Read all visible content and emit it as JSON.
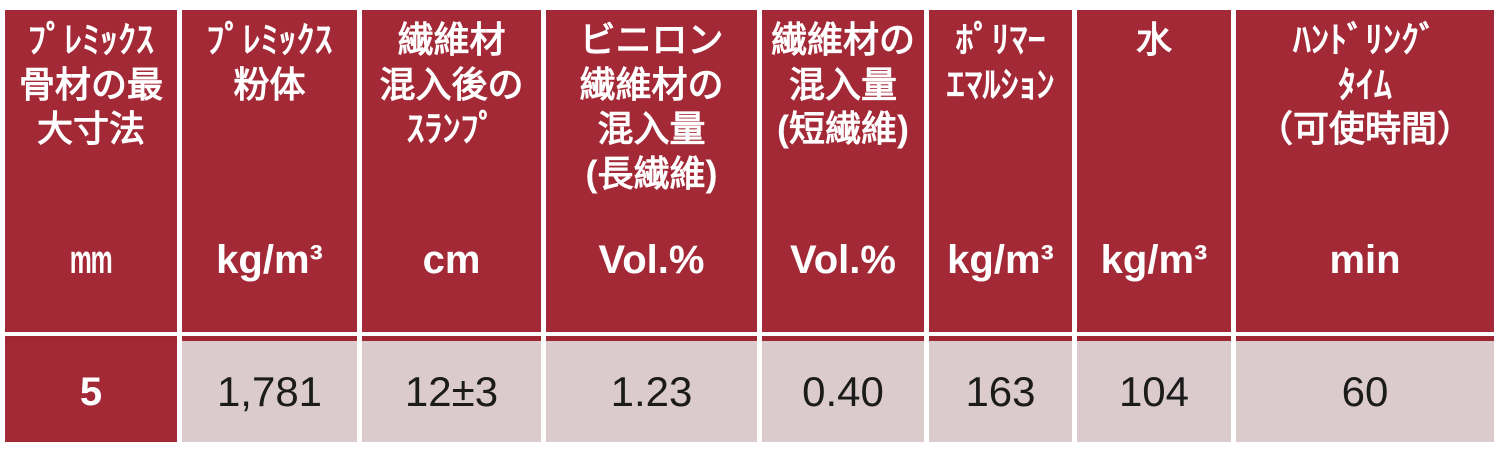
{
  "theme": {
    "css_vars": {
      "--accent-red": "#A42937",
      "--border-red": "#9E2733",
      "--row-pink": "#DCCBCD",
      "--header-text": "#FFFFFF",
      "--data-text": "#1B1B1B",
      "--page-bg": "#FFFFFF"
    }
  },
  "table": {
    "description": "Premixed fiber-reinforced mortar specification table",
    "columns": [
      {
        "label": "ﾌﾟﾚﾐｯｸｽ\n骨材の最\n大寸法",
        "unit": "mm",
        "value": "5"
      },
      {
        "label": "ﾌﾟﾚﾐｯｸｽ\n粉体",
        "unit": "kg/m³",
        "value": "1,781"
      },
      {
        "label": "繊維材\n混入後の\nｽﾗﾝﾌﾟ",
        "unit": "cm",
        "value": "12±3"
      },
      {
        "label": "ビニロン\n繊維材の\n混入量\n(長繊維)",
        "unit": "Vol.%",
        "value": "1.23"
      },
      {
        "label": "繊維材の\n混入量\n(短繊維)",
        "unit": "Vol.%",
        "value": "0.40"
      },
      {
        "label": "ﾎﾟﾘﾏｰ\nｴﾏﾙｼｮﾝ",
        "unit": "kg/m³",
        "value": "163"
      },
      {
        "label": "水",
        "unit": "kg/m³",
        "value": "104"
      },
      {
        "label": "ﾊﾝﾄﾞﾘﾝｸﾞ\nﾀｲﾑ\n（可使時間）",
        "unit": "min",
        "value": "60"
      }
    ]
  }
}
